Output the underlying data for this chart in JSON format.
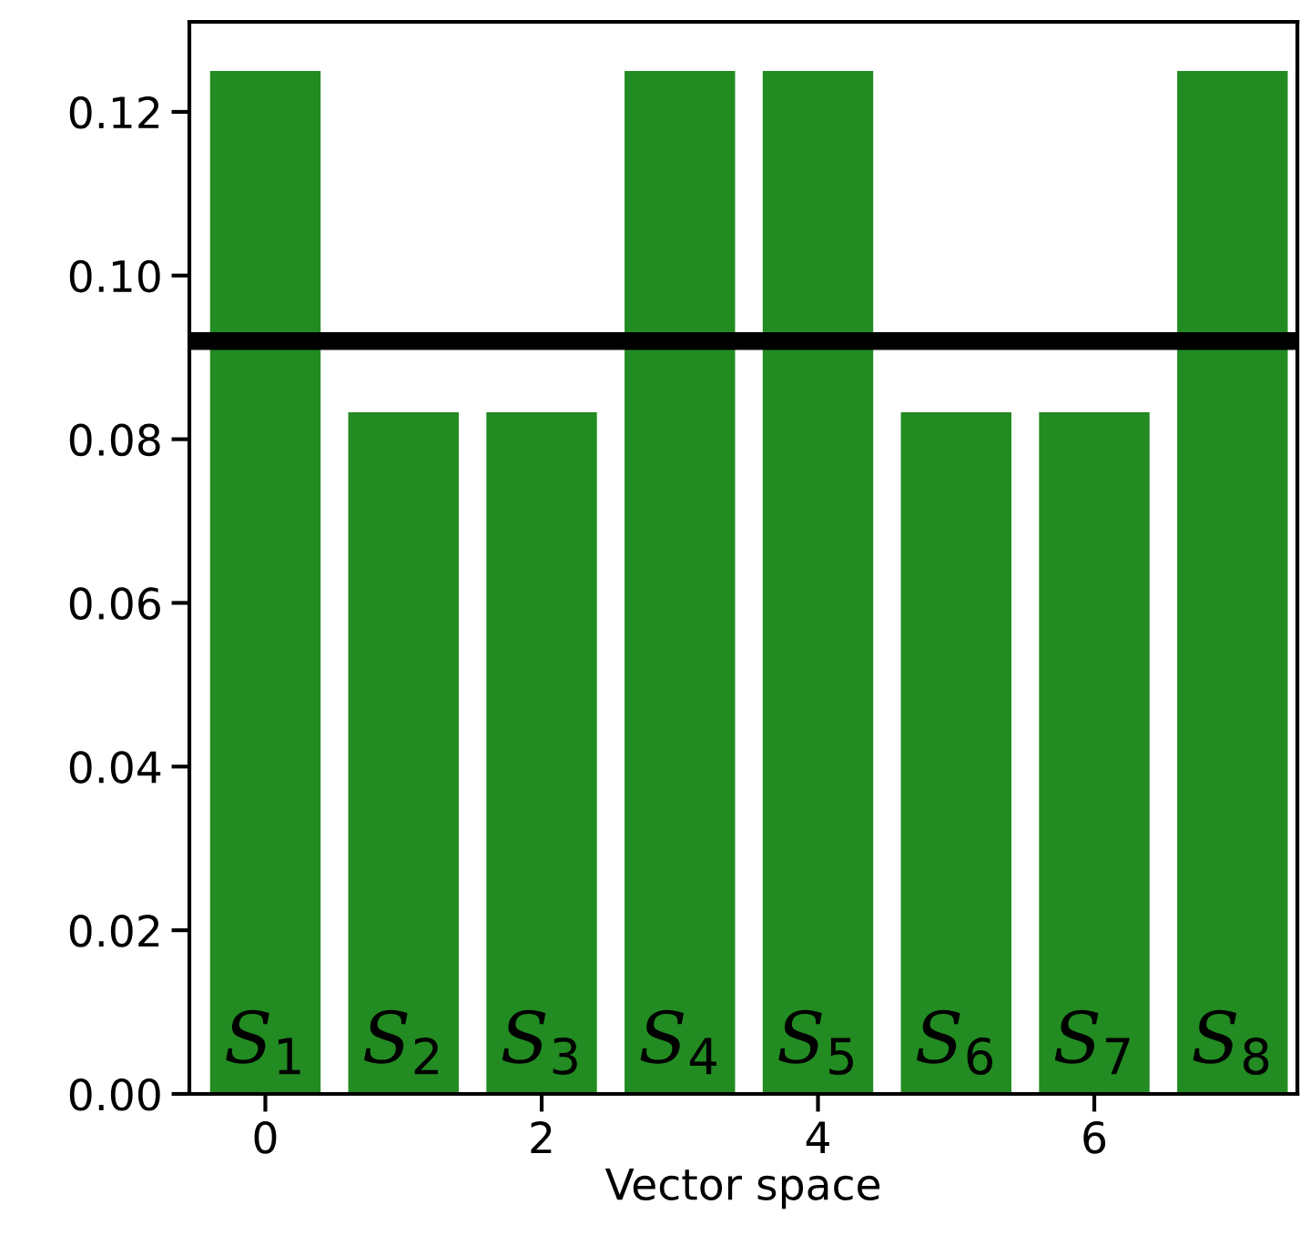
{
  "chart_data": {
    "type": "bar",
    "xlabel": "Vector space",
    "x": [
      0,
      1,
      2,
      3,
      4,
      5,
      6,
      7
    ],
    "values": [
      0.125,
      0.0833,
      0.0833,
      0.125,
      0.125,
      0.0833,
      0.0833,
      0.125
    ],
    "color": "#228b22",
    "xlim": [
      -0.55,
      7.47
    ],
    "xticks": [
      0,
      2,
      4,
      6
    ],
    "ylim": [
      0,
      0.131
    ],
    "yticks": [
      {
        "value": 0,
        "label": "0.00"
      },
      {
        "value": 0.02,
        "label": "0.02"
      },
      {
        "value": 0.04,
        "label": "0.04"
      },
      {
        "value": 0.06,
        "label": "0.06"
      },
      {
        "value": 0.08,
        "label": "0.08"
      },
      {
        "value": 0.1,
        "label": "0.10"
      },
      {
        "value": 0.12,
        "label": "0.12"
      }
    ],
    "ref_lines": [
      {
        "axis": "y",
        "value": 0.092,
        "color": "#000000"
      }
    ],
    "annotations": [
      "S$_{1}$",
      "S$_{2}$",
      "S$_{3}$",
      "S$_{4}$",
      "S$_{5}$",
      "S$_{6}$",
      "S$_{7}$",
      "S$_{8}$"
    ],
    "grid": false
  }
}
